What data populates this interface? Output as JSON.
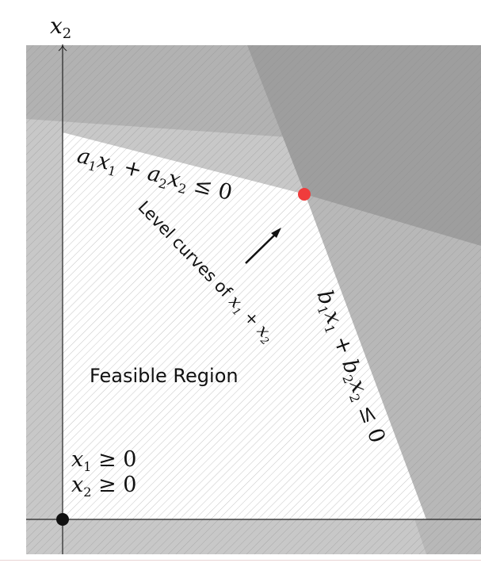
{
  "axes": {
    "x2_label": "x",
    "x2_sub": "2"
  },
  "constraints": {
    "a": {
      "t1": "a",
      "s1": "1",
      "t2": "x",
      "s2": "1",
      "t3": " + a",
      "s3": "2",
      "t4": "x",
      "s4": "2",
      "t5": " ≤ 0"
    },
    "b": {
      "t1": "b",
      "s1": "1",
      "t2": "x",
      "s2": "1",
      "t3": " + b",
      "s3": "2",
      "t4": "x",
      "s4": "2",
      "t5": " ≤ 0"
    },
    "nonneg": [
      {
        "t1": "x",
        "s1": "1",
        "t2": " ≥ 0"
      },
      {
        "t1": "x",
        "s1": "2",
        "t2": " ≥ 0"
      }
    ]
  },
  "level_curves": {
    "prefix": "Level curves of ",
    "t1": "x",
    "s1": "1",
    "t2": " + x",
    "s2": "2"
  },
  "feasible_region_label": "Feasible Region",
  "colors": {
    "outer_infeasible": "#c8c8c8",
    "dark_infeasible": "#a4a4a4",
    "darkest_overlap": "#9c9c9c",
    "feasible": "#ffffff",
    "hatch": "#8a8a8a",
    "optimal_point": "#f03c3c",
    "origin_point": "#111111"
  }
}
